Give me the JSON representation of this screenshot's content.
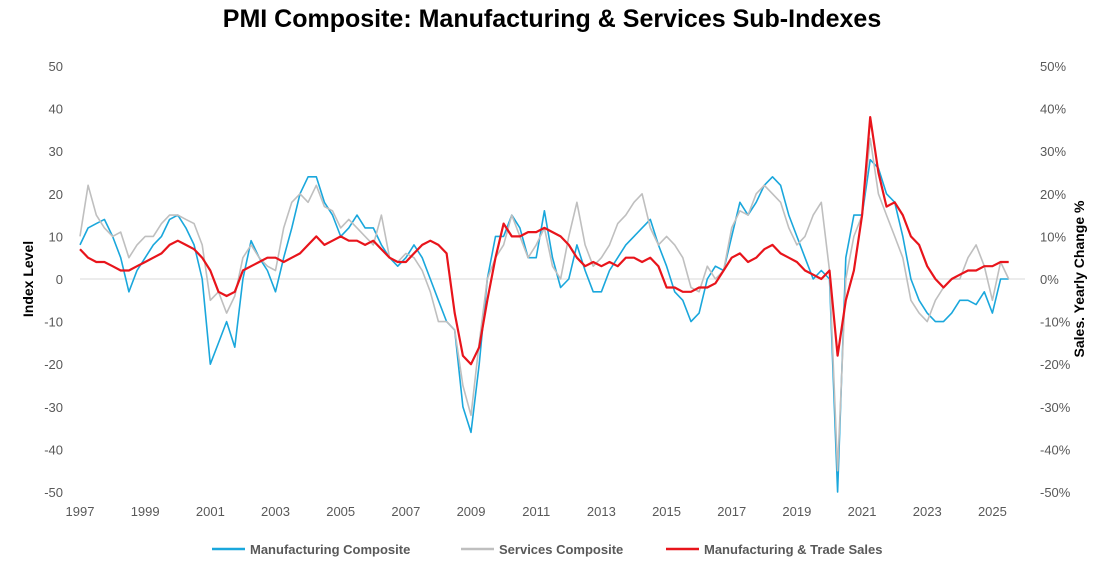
{
  "chart_data": {
    "type": "line",
    "title": "PMI Composite: Manufacturing & Services Sub-Indexes",
    "xlabel": "",
    "ylabel": "Index Level",
    "y2label": "Sales. Yearly Change %",
    "ylim": [
      -50,
      50
    ],
    "y2lim": [
      -50,
      50
    ],
    "xlim": [
      1997,
      2026
    ],
    "x_start": 1997,
    "x_step": 0.25,
    "x_ticks": [
      "1997",
      "1999",
      "2001",
      "2003",
      "2005",
      "2007",
      "2009",
      "2011",
      "2013",
      "2015",
      "2017",
      "2019",
      "2021",
      "2023",
      "2025"
    ],
    "y_ticks": [
      "50",
      "40",
      "30",
      "20",
      "10",
      "0",
      "-10",
      "-20",
      "-30",
      "-40",
      "-50"
    ],
    "y2_ticks": [
      "50%",
      "40%",
      "30%",
      "20%",
      "10%",
      "0%",
      "-10%",
      "-20%",
      "-30%",
      "-40%",
      "-50%"
    ],
    "legend_position": "bottom",
    "series": [
      {
        "name": "Manufacturing Composite",
        "color": "#1aa7dc",
        "axis": "left",
        "values": [
          8,
          12,
          13,
          14,
          10,
          5,
          -3,
          2,
          5,
          8,
          10,
          14,
          15,
          12,
          8,
          0,
          -20,
          -15,
          -10,
          -16,
          0,
          9,
          5,
          2,
          -3,
          5,
          12,
          20,
          24,
          24,
          18,
          15,
          10,
          12,
          15,
          12,
          12,
          8,
          5,
          3,
          5,
          8,
          5,
          0,
          -5,
          -10,
          -12,
          -30,
          -36,
          -20,
          0,
          10,
          10,
          15,
          12,
          5,
          5,
          16,
          5,
          -2,
          0,
          8,
          2,
          -3,
          -3,
          2,
          5,
          8,
          10,
          12,
          14,
          8,
          3,
          -3,
          -5,
          -10,
          -8,
          0,
          3,
          2,
          10,
          18,
          15,
          18,
          22,
          24,
          22,
          15,
          10,
          5,
          0,
          2,
          0,
          -50,
          5,
          15,
          15,
          28,
          26,
          20,
          18,
          10,
          0,
          -5,
          -8,
          -10,
          -10,
          -8,
          -5,
          -5,
          -6,
          -3,
          -8,
          0,
          0
        ]
      },
      {
        "name": "Services Composite",
        "color": "#bfbfbf",
        "axis": "left",
        "values": [
          10,
          22,
          15,
          12,
          10,
          11,
          5,
          8,
          10,
          10,
          13,
          15,
          15,
          14,
          13,
          8,
          -5,
          -3,
          -8,
          -4,
          5,
          8,
          5,
          3,
          2,
          12,
          18,
          20,
          18,
          22,
          17,
          16,
          12,
          14,
          12,
          10,
          8,
          15,
          5,
          4,
          6,
          5,
          2,
          -3,
          -10,
          -10,
          -12,
          -25,
          -32,
          -15,
          0,
          5,
          8,
          15,
          10,
          5,
          8,
          12,
          3,
          0,
          10,
          18,
          8,
          3,
          5,
          8,
          13,
          15,
          18,
          20,
          12,
          8,
          10,
          8,
          5,
          -2,
          -3,
          3,
          0,
          2,
          12,
          16,
          15,
          20,
          22,
          20,
          18,
          12,
          8,
          10,
          15,
          18,
          2,
          -45,
          0,
          10,
          15,
          33,
          20,
          15,
          10,
          5,
          -5,
          -8,
          -10,
          -5,
          -2,
          0,
          0,
          5,
          8,
          3,
          -5,
          4,
          0
        ]
      },
      {
        "name": "Manufacturing & Trade Sales",
        "color": "#e8141b",
        "axis": "right",
        "values": [
          7,
          5,
          4,
          4,
          3,
          2,
          2,
          3,
          4,
          5,
          6,
          8,
          9,
          8,
          7,
          5,
          2,
          -3,
          -4,
          -3,
          2,
          3,
          4,
          5,
          5,
          4,
          5,
          6,
          8,
          10,
          8,
          9,
          10,
          9,
          9,
          8,
          9,
          7,
          5,
          4,
          4,
          6,
          8,
          9,
          8,
          6,
          -8,
          -18,
          -20,
          -16,
          -5,
          5,
          13,
          10,
          10,
          11,
          11,
          12,
          11,
          10,
          8,
          5,
          3,
          4,
          3,
          4,
          3,
          5,
          5,
          4,
          5,
          3,
          -2,
          -2,
          -3,
          -3,
          -2,
          -2,
          -1,
          2,
          5,
          6,
          4,
          5,
          7,
          8,
          6,
          5,
          4,
          2,
          1,
          0,
          2,
          -18,
          -5,
          2,
          15,
          38,
          25,
          17,
          18,
          15,
          10,
          8,
          3,
          0,
          -2,
          0,
          1,
          2,
          2,
          3,
          3,
          4,
          4
        ]
      }
    ]
  }
}
